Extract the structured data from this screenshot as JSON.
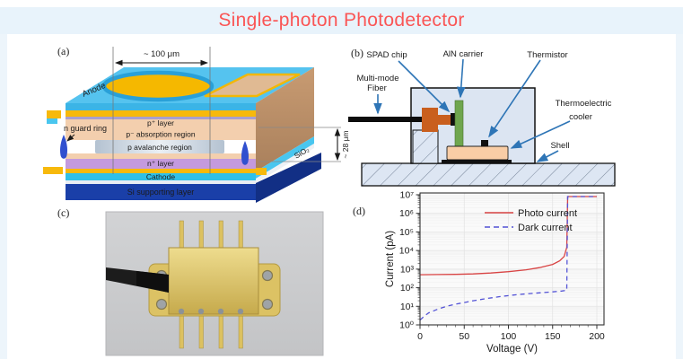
{
  "page": {
    "title": "Single-photon Photodetector"
  },
  "colors": {
    "title": "#fa5555",
    "callout_arrow": "#2e75b6",
    "photo_current": "#d84343",
    "dark_current": "#5353d6"
  },
  "panels": {
    "a": {
      "label": "(a)",
      "width_dim": "~ 100 μm",
      "height_dim": "~ 28 μm",
      "anode": "Anode",
      "guard_ring": "n guard ring",
      "p_plus_layer": "p⁺ layer",
      "absorption_region": "p⁻ absorption region",
      "avalanche_region": "p avalanche region",
      "n_plus_layer": "n⁺ layer",
      "cathode": "Cathode",
      "sio2": "SiO₂",
      "si_supporting_layer": "Si supporting layer"
    },
    "b": {
      "label": "(b)",
      "spad_chip": "SPAD chip",
      "aln_carrier": "AlN carrier",
      "thermistor": "Thermistor",
      "fiber_line1": "Multi-mode",
      "fiber_line2": "Fiber",
      "tec_line1": "Thermoelectric",
      "tec_line2": "cooler",
      "shell": "Shell"
    },
    "c": {
      "label": "(c)"
    },
    "d": {
      "label": "(d)"
    }
  },
  "chart_data": {
    "type": "line",
    "title": "",
    "xlabel": "Voltage (V)",
    "ylabel": "Current (pA)",
    "xlim": [
      0,
      200
    ],
    "xticks": [
      0,
      50,
      100,
      150,
      200
    ],
    "x_minor_step": 10,
    "y_scale": "log",
    "y_exp_range": [
      0,
      7
    ],
    "ytick_labels": [
      "10⁰",
      "10¹",
      "10²",
      "10³",
      "10⁴",
      "10⁵",
      "10⁶",
      "10⁷"
    ],
    "grid": true,
    "legend_position": "upper-left-inside",
    "breakdown_voltage_V": 167,
    "series": [
      {
        "name": "Photo current",
        "color": "#d84343",
        "style": "solid",
        "points": [
          [
            0,
            500
          ],
          [
            20,
            510
          ],
          [
            40,
            525
          ],
          [
            60,
            555
          ],
          [
            80,
            615
          ],
          [
            100,
            730
          ],
          [
            120,
            920
          ],
          [
            135,
            1200
          ],
          [
            150,
            1800
          ],
          [
            158,
            2800
          ],
          [
            163,
            4800
          ],
          [
            166,
            15000
          ],
          [
            167,
            8000000
          ],
          [
            200,
            8000000
          ]
        ]
      },
      {
        "name": "Dark current",
        "color": "#5353d6",
        "style": "dashed",
        "points": [
          [
            0,
            1.8
          ],
          [
            5,
            3
          ],
          [
            10,
            4.5
          ],
          [
            20,
            7
          ],
          [
            30,
            10
          ],
          [
            40,
            13
          ],
          [
            50,
            16
          ],
          [
            60,
            20
          ],
          [
            75,
            26
          ],
          [
            90,
            33
          ],
          [
            105,
            40
          ],
          [
            120,
            47
          ],
          [
            135,
            53
          ],
          [
            150,
            60
          ],
          [
            160,
            66
          ],
          [
            166,
            72
          ],
          [
            167,
            8000000
          ],
          [
            200,
            8000000
          ]
        ]
      }
    ]
  }
}
